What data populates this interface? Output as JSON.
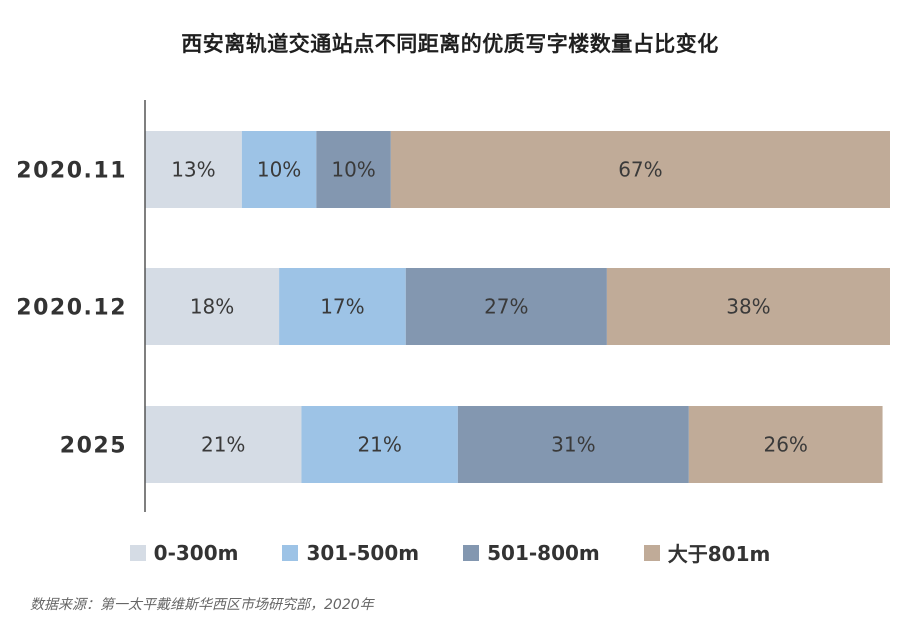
{
  "title": "西安离轨道交通站点不同距离的优质写字楼数量占比变化",
  "source": "数据来源：第一太平戴维斯华西区市场研究部，2020年",
  "chart_data": {
    "type": "bar",
    "orientation": "horizontal",
    "stacked": true,
    "normalized_percent": true,
    "categories": [
      "2020.11",
      "2020.12",
      "2025"
    ],
    "series": [
      {
        "name": "0-300m",
        "color": "#d5dce5",
        "values": [
          13,
          18,
          21
        ],
        "labels": [
          "13%",
          "18%",
          "21%"
        ]
      },
      {
        "name": "301-500m",
        "color": "#9dc3e6",
        "values": [
          10,
          17,
          21
        ],
        "labels": [
          "10%",
          "17%",
          "21%"
        ]
      },
      {
        "name": "501-800m",
        "color": "#8397b0",
        "values": [
          10,
          27,
          31
        ],
        "labels": [
          "10%",
          "27%",
          "31%"
        ]
      },
      {
        "name": "大于801m",
        "color": "#c0ab98",
        "values": [
          67,
          38,
          26
        ],
        "labels": [
          "67%",
          "38%",
          "26%"
        ]
      }
    ],
    "xlim": [
      0,
      100
    ],
    "grid": false,
    "legend_position": "bottom"
  }
}
